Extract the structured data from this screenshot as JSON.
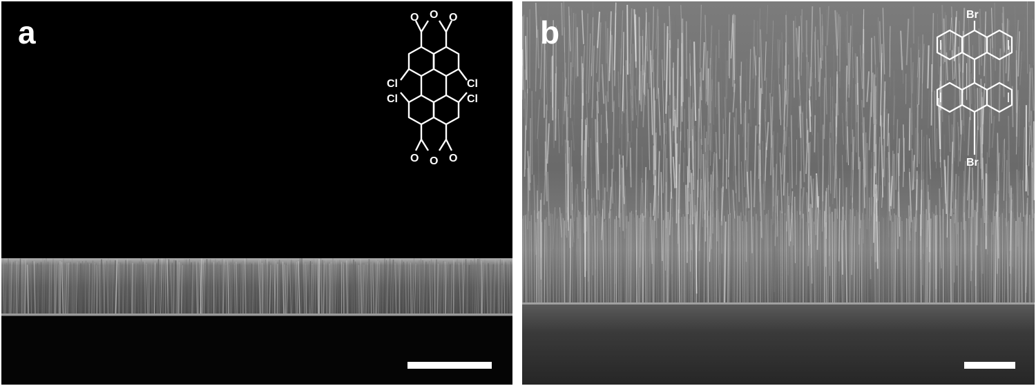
{
  "figure": {
    "panels": [
      {
        "label": "a",
        "content": "cross-section SEM micrograph of a thin nanowire film on substrate",
        "inset_molecule": {
          "atoms": {
            "oxygen": "O",
            "chlorine": "Cl"
          }
        },
        "scale_bar": {
          "color": "#ffffff"
        }
      },
      {
        "label": "b",
        "content": "cross-section SEM micrograph of a dense vertical nanowire forest on substrate",
        "inset_molecule": {
          "atoms": {
            "bromine": "Br"
          }
        },
        "scale_bar": {
          "color": "#ffffff"
        }
      }
    ]
  },
  "colors": {
    "background": "#ffffff",
    "micrograph_bg": "#000000",
    "overlay": "#ffffff"
  }
}
